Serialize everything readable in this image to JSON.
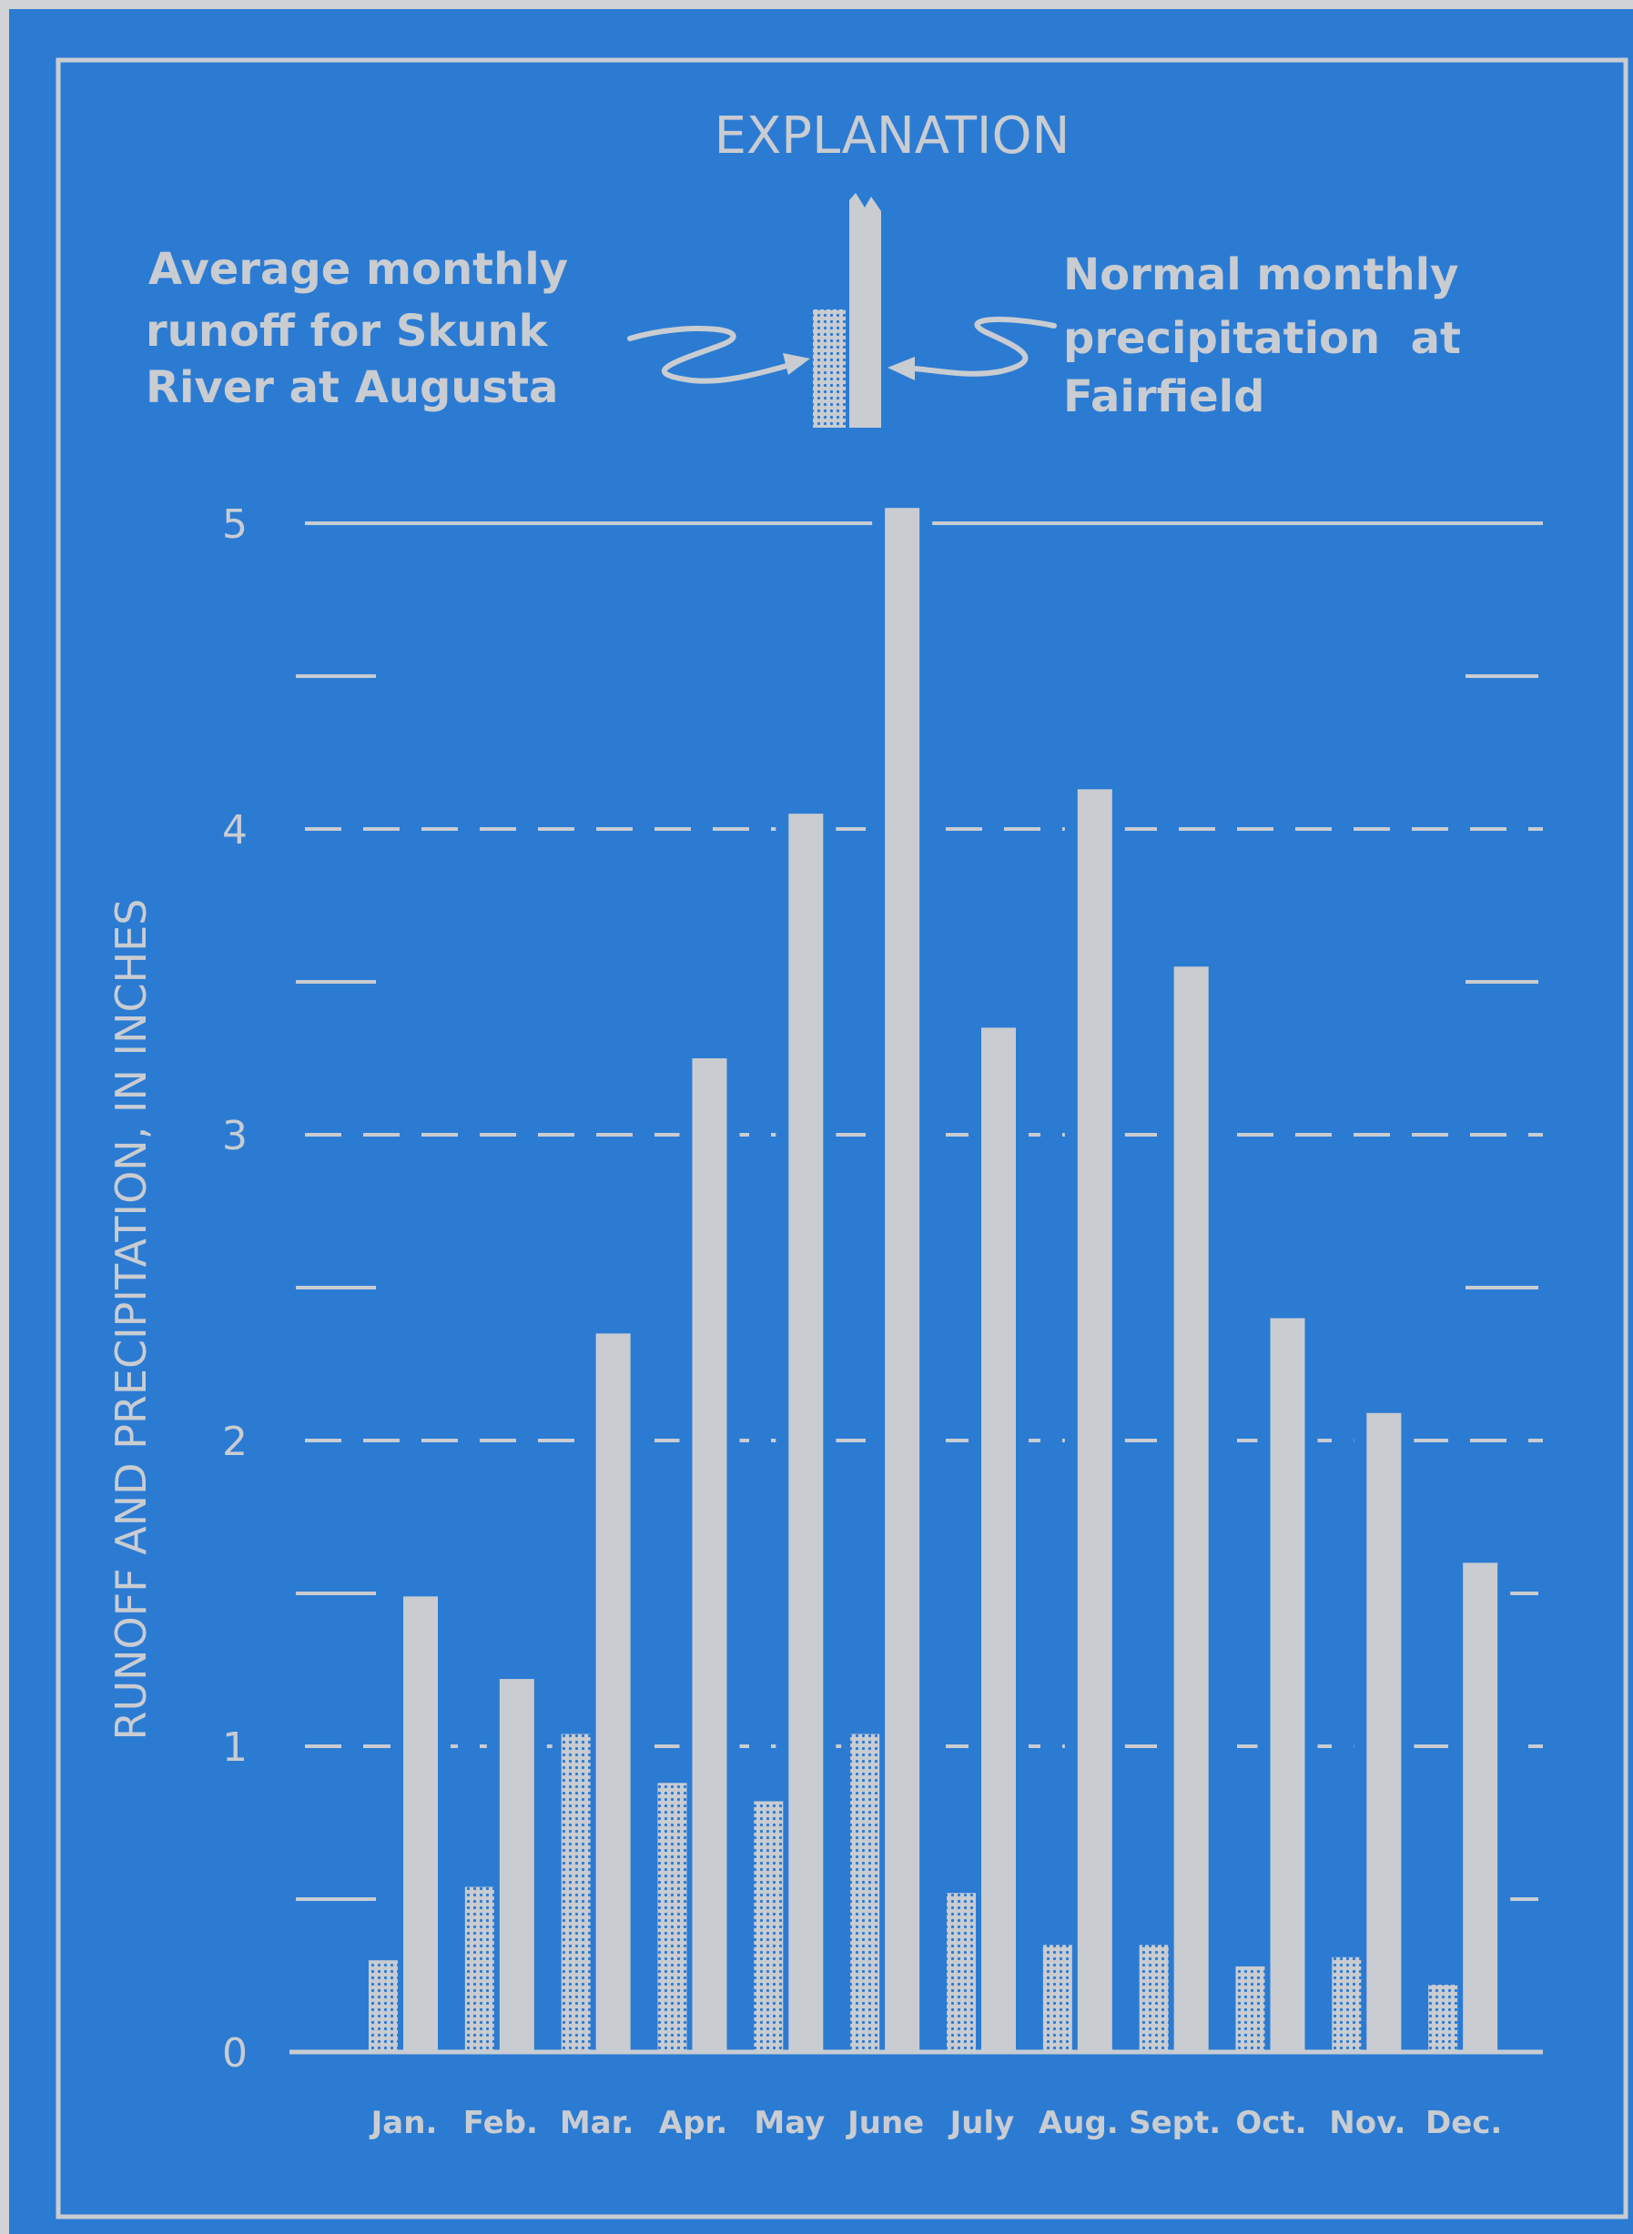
{
  "explanation": {
    "title": "EXPLANATION",
    "runoff_label": [
      "Average monthly",
      "runoff for Skunk",
      "River at Augusta"
    ],
    "precip_label": [
      "Normal monthly",
      "precipitation  at",
      "Fairfield"
    ]
  },
  "colors": {
    "background": "#2b7bd3",
    "bar_and_line": "#c9ccd1",
    "runoff_stipple": "#2b7bd3",
    "page_margin": "#cfd3d6"
  },
  "chart_data": {
    "type": "bar",
    "ylabel": "RUNOFF AND PRECIPITATION, IN INCHES",
    "xlabel": "",
    "ylim": [
      0,
      5
    ],
    "yticks": [
      0,
      1,
      2,
      3,
      4,
      5
    ],
    "ytick_labels": [
      "0",
      "1",
      "2",
      "3",
      "4",
      "5"
    ],
    "minor_ticks": [
      0.5,
      1.5,
      2.5,
      3.5,
      4.5
    ],
    "grid": true,
    "categories": [
      "Jan.",
      "Feb.",
      "Mar.",
      "Apr.",
      "May",
      "June",
      "July",
      "Aug.",
      "Sept.",
      "Oct.",
      "Nov.",
      "Dec."
    ],
    "series": [
      {
        "name": "Average monthly runoff for Skunk River at Augusta",
        "pattern": "stippled",
        "values": [
          0.3,
          0.54,
          1.04,
          0.88,
          0.82,
          1.04,
          0.52,
          0.35,
          0.35,
          0.28,
          0.31,
          0.22
        ]
      },
      {
        "name": "Normal monthly precipitation at Fairfield",
        "pattern": "solid",
        "values": [
          1.49,
          1.22,
          2.35,
          3.25,
          4.05,
          5.05,
          3.35,
          4.13,
          3.55,
          2.4,
          2.09,
          1.6
        ]
      }
    ]
  }
}
